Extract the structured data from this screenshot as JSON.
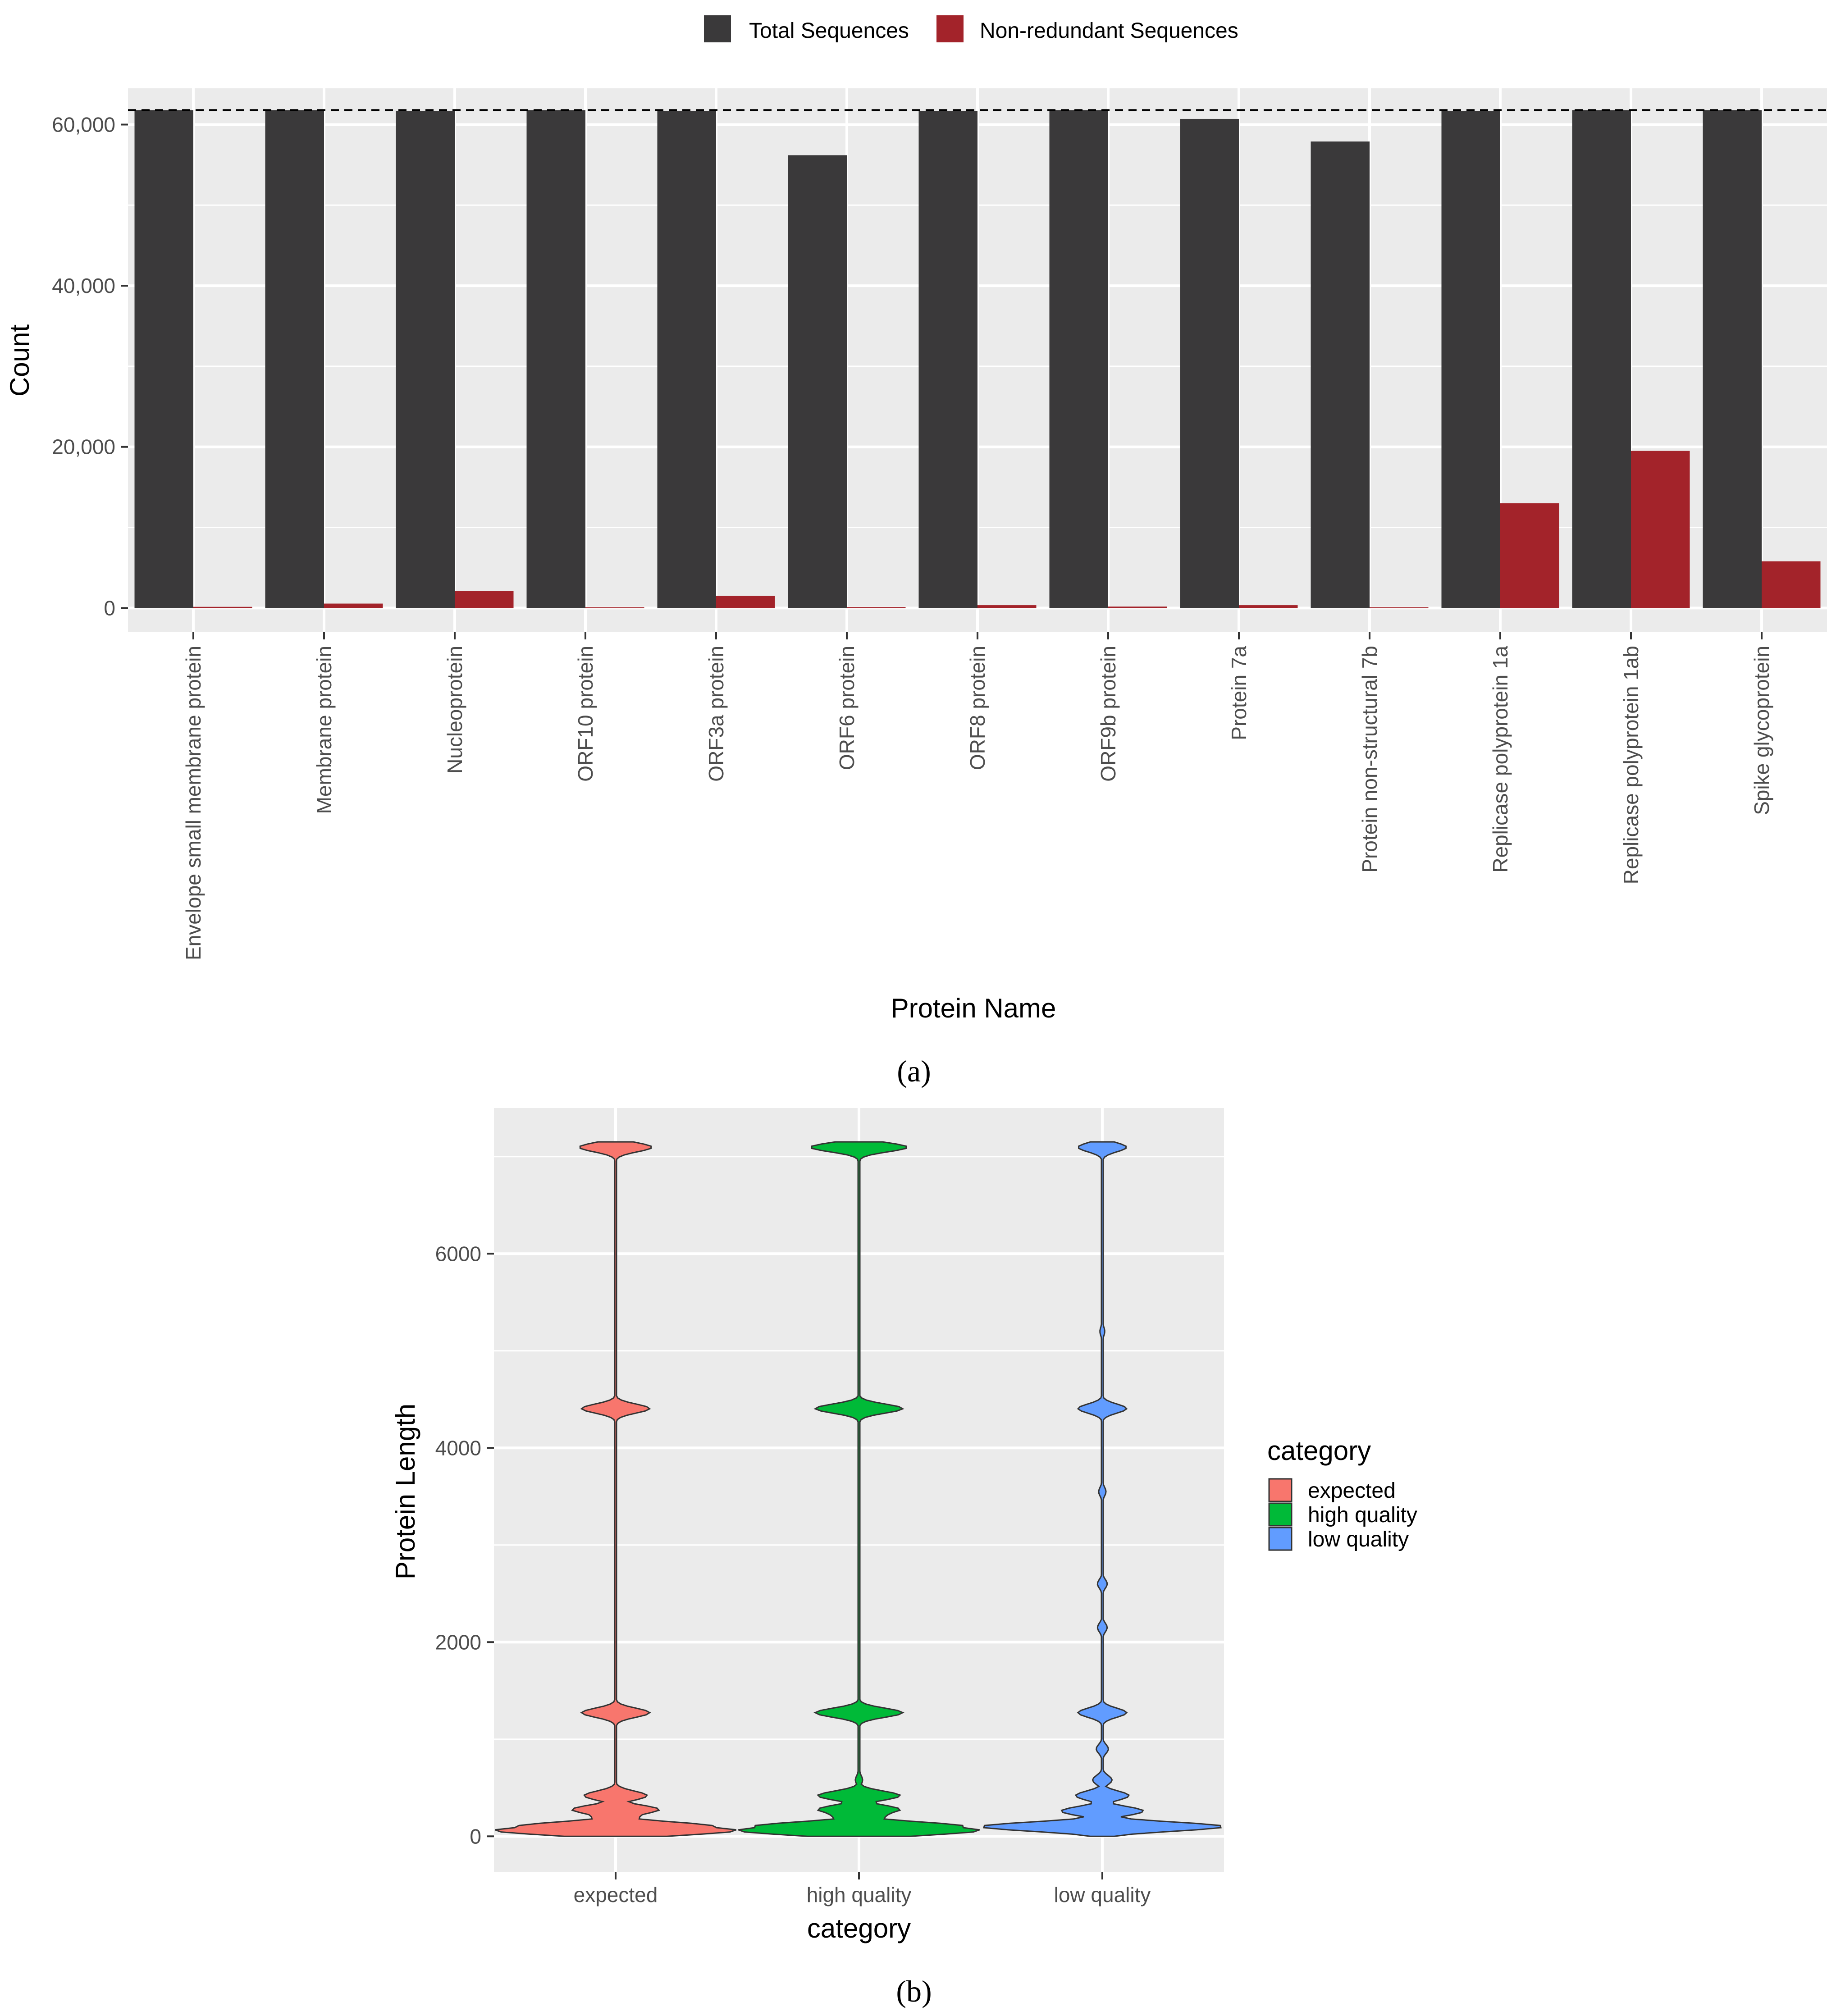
{
  "chart_data": [
    {
      "type": "bar",
      "panel": "(a)",
      "title": "",
      "xlabel": "Protein Name",
      "ylabel": "Count",
      "ylim": [
        -3000,
        64500
      ],
      "yticks": [
        0,
        20000,
        40000,
        60000
      ],
      "ytick_labels": [
        "0",
        "20,000",
        "40,000",
        "60,000"
      ],
      "grid": true,
      "legend_position": "top",
      "reference_line": {
        "y": 61800,
        "style": "dashed"
      },
      "categories": [
        "Envelope small membrane protein",
        "Membrane protein",
        "Nucleoprotein",
        "ORF10 protein",
        "ORF3a protein",
        "ORF6 protein",
        "ORF8 protein",
        "ORF9b protein",
        "Protein 7a",
        "Protein non-structural 7b",
        "Replicase polyprotein 1a",
        "Replicase polyprotein 1ab",
        "Spike glycoprotein"
      ],
      "series": [
        {
          "name": "Total Sequences",
          "color": "#3a393a",
          "values": [
            61800,
            61800,
            61700,
            61800,
            61700,
            56200,
            61700,
            61800,
            60700,
            57900,
            61700,
            61800,
            61800
          ]
        },
        {
          "name": "Non-redundant Sequences",
          "color": "#a3232a",
          "values": [
            150,
            550,
            2100,
            100,
            1500,
            120,
            350,
            180,
            350,
            100,
            13000,
            19500,
            5800
          ]
        }
      ]
    },
    {
      "type": "violin",
      "panel": "(b)",
      "title": "",
      "xlabel": "category",
      "ylabel": "Protein Length",
      "ylim": [
        -370,
        7500
      ],
      "yticks": [
        0,
        2000,
        4000,
        6000
      ],
      "ytick_labels": [
        "0",
        "2000",
        "4000",
        "6000"
      ],
      "grid": true,
      "legend_title": "category",
      "legend_position": "right",
      "categories": [
        "expected",
        "high quality",
        "low quality"
      ],
      "series": [
        {
          "name": "expected",
          "color": "#f8766d",
          "range": [
            0,
            7096
          ],
          "modes": [
            {
              "y": 7096,
              "rel_width": 0.3
            },
            {
              "y": 4405,
              "rel_width": 0.28
            },
            {
              "y": 1273,
              "rel_width": 0.28
            },
            {
              "y": 419,
              "rel_width": 0.26
            },
            {
              "y": 275,
              "rel_width": 0.36
            },
            {
              "y": 222,
              "rel_width": 0.22
            },
            {
              "y": 100,
              "rel_width": 0.82
            },
            {
              "y": 61,
              "rel_width": 1.0
            }
          ]
        },
        {
          "name": "high quality",
          "color": "#00ba38",
          "range": [
            0,
            7096
          ],
          "modes": [
            {
              "y": 7096,
              "rel_width": 0.4
            },
            {
              "y": 4405,
              "rel_width": 0.36
            },
            {
              "y": 1273,
              "rel_width": 0.36
            },
            {
              "y": 580,
              "rel_width": 0.03
            },
            {
              "y": 419,
              "rel_width": 0.34
            },
            {
              "y": 275,
              "rel_width": 0.34
            },
            {
              "y": 222,
              "rel_width": 0.24
            },
            {
              "y": 100,
              "rel_width": 0.88
            },
            {
              "y": 61,
              "rel_width": 1.0
            }
          ]
        },
        {
          "name": "low quality",
          "color": "#619cff",
          "range": [
            0,
            7096
          ],
          "modes": [
            {
              "y": 7096,
              "rel_width": 0.2
            },
            {
              "y": 5200,
              "rel_width": 0.02
            },
            {
              "y": 4405,
              "rel_width": 0.2
            },
            {
              "y": 3550,
              "rel_width": 0.03
            },
            {
              "y": 2600,
              "rel_width": 0.04
            },
            {
              "y": 2150,
              "rel_width": 0.04
            },
            {
              "y": 1273,
              "rel_width": 0.2
            },
            {
              "y": 900,
              "rel_width": 0.05
            },
            {
              "y": 580,
              "rel_width": 0.08
            },
            {
              "y": 419,
              "rel_width": 0.22
            },
            {
              "y": 260,
              "rel_width": 0.34
            },
            {
              "y": 100,
              "rel_width": 1.0
            }
          ]
        }
      ]
    }
  ],
  "captions": {
    "a": "(a)",
    "b": "(b)"
  }
}
